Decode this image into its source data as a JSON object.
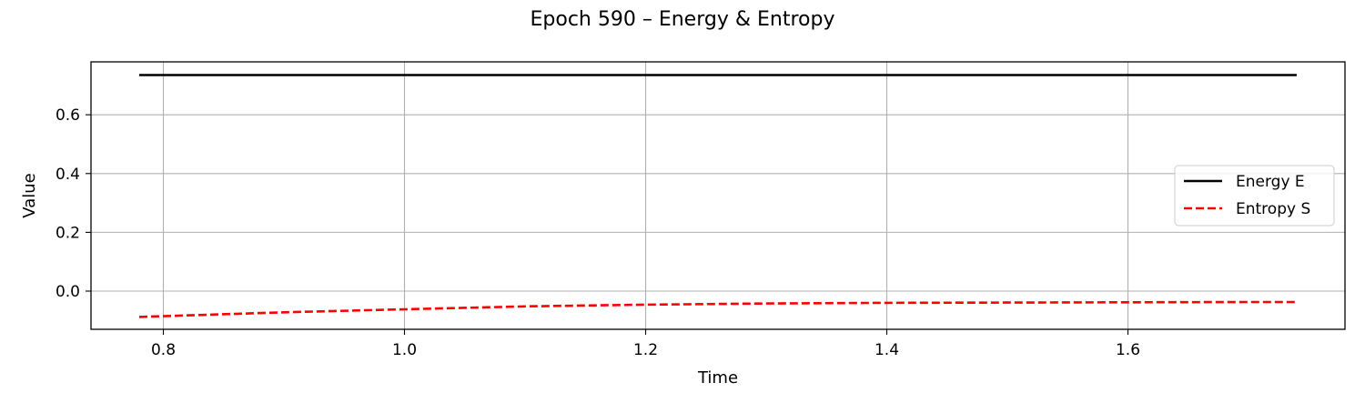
{
  "chart_data": {
    "type": "line",
    "title": "Epoch 590 – Energy & Entropy",
    "xlabel": "Time",
    "ylabel": "Value",
    "xlim": [
      0.74,
      1.78
    ],
    "ylim": [
      -0.13,
      0.78
    ],
    "xticks": [
      0.8,
      1.0,
      1.2,
      1.4,
      1.6
    ],
    "xtick_labels": [
      "0.8",
      "1.0",
      "1.2",
      "1.4",
      "1.6"
    ],
    "yticks": [
      0.0,
      0.2,
      0.4,
      0.6
    ],
    "ytick_labels": [
      "0.0",
      "0.2",
      "0.4",
      "0.6"
    ],
    "grid": true,
    "legend_position": "center-right",
    "series": [
      {
        "name": "Energy E",
        "color": "#000000",
        "style": "solid",
        "x": [
          0.78,
          0.9,
          1.0,
          1.1,
          1.2,
          1.3,
          1.4,
          1.5,
          1.6,
          1.7,
          1.74
        ],
        "y": [
          0.735,
          0.735,
          0.735,
          0.735,
          0.735,
          0.735,
          0.735,
          0.735,
          0.735,
          0.735,
          0.735
        ]
      },
      {
        "name": "Entropy S",
        "color": "#ff0000",
        "style": "dashed",
        "x": [
          0.78,
          0.9,
          1.0,
          1.1,
          1.2,
          1.3,
          1.4,
          1.5,
          1.6,
          1.7,
          1.74
        ],
        "y": [
          -0.088,
          -0.072,
          -0.062,
          -0.052,
          -0.046,
          -0.042,
          -0.04,
          -0.039,
          -0.038,
          -0.037,
          -0.037
        ]
      }
    ]
  }
}
